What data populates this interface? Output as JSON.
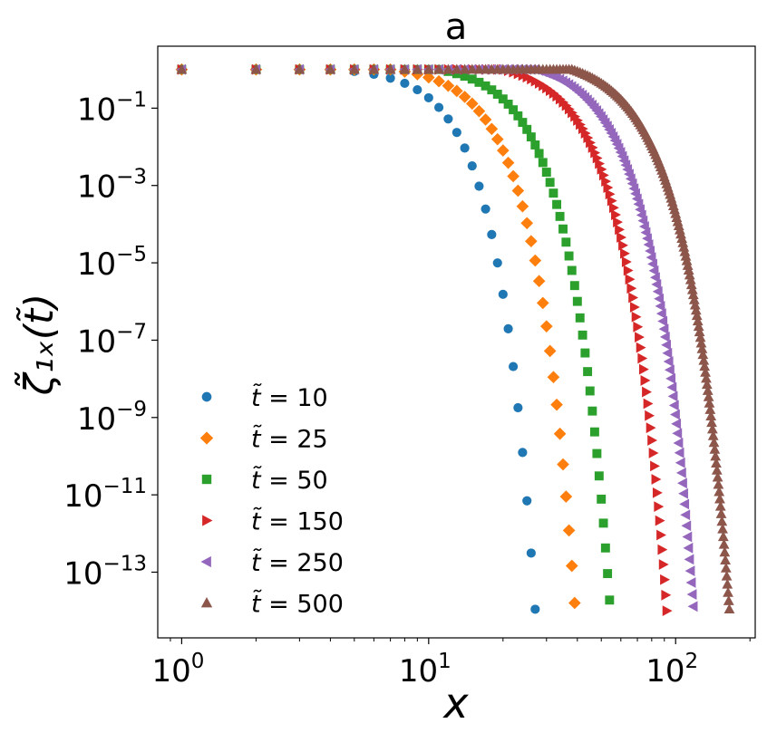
{
  "chart_data": {
    "type": "scatter",
    "title": "a",
    "xlabel": "x",
    "ylabel": "ζ̃₁ₓ(t̃)",
    "x_scale": "log",
    "y_scale": "log",
    "xlim": [
      0.8,
      210
    ],
    "ylim": [
      2e-15,
      4
    ],
    "x_ticks": [
      {
        "value": 1,
        "base": "10",
        "exp": "0"
      },
      {
        "value": 10,
        "base": "10",
        "exp": "1"
      },
      {
        "value": 100,
        "base": "10",
        "exp": "2"
      }
    ],
    "y_ticks": [
      {
        "value": 0.1,
        "base": "10",
        "exp": "−1"
      },
      {
        "value": 0.001,
        "base": "10",
        "exp": "−3"
      },
      {
        "value": 1e-05,
        "base": "10",
        "exp": "−5"
      },
      {
        "value": 1e-07,
        "base": "10",
        "exp": "−7"
      },
      {
        "value": 1e-09,
        "base": "10",
        "exp": "−9"
      },
      {
        "value": 1e-11,
        "base": "10",
        "exp": "−11"
      },
      {
        "value": 1e-13,
        "base": "10",
        "exp": "−13"
      }
    ],
    "grid": false,
    "legend_position": "lower-left",
    "series": [
      {
        "name": "t̃ = 10",
        "name_value": "10",
        "marker": "circle",
        "color": "#1f77b4",
        "x_max": 27,
        "x_break": 4,
        "y_at_max": 1.1e-14,
        "steepness": 2.9
      },
      {
        "name": "t̃ = 25",
        "name_value": "25",
        "marker": "diamond",
        "color": "#ff7f0e",
        "x_max": 39,
        "x_break": 7,
        "y_at_max": 1.6e-14,
        "steepness": 2.75
      },
      {
        "name": "t̃ = 50",
        "name_value": "50",
        "marker": "square",
        "color": "#2ca02c",
        "x_max": 54,
        "x_break": 11,
        "y_at_max": 1.9e-14,
        "steepness": 2.7
      },
      {
        "name": "t̃ = 150",
        "name_value": "150",
        "marker": "triangle-right",
        "color": "#d62728",
        "x_max": 92,
        "x_break": 20,
        "y_at_max": 1e-14,
        "steepness": 2.65
      },
      {
        "name": "t̃ = 250",
        "name_value": "250",
        "marker": "triangle-left",
        "color": "#9467bd",
        "x_max": 118,
        "x_break": 27,
        "y_at_max": 1.3e-14,
        "steepness": 2.6
      },
      {
        "name": "t̃ = 500",
        "name_value": "500",
        "marker": "triangle-up",
        "color": "#8c564b",
        "x_max": 165,
        "x_break": 38,
        "y_at_max": 1.1e-14,
        "steepness": 2.5
      }
    ]
  }
}
